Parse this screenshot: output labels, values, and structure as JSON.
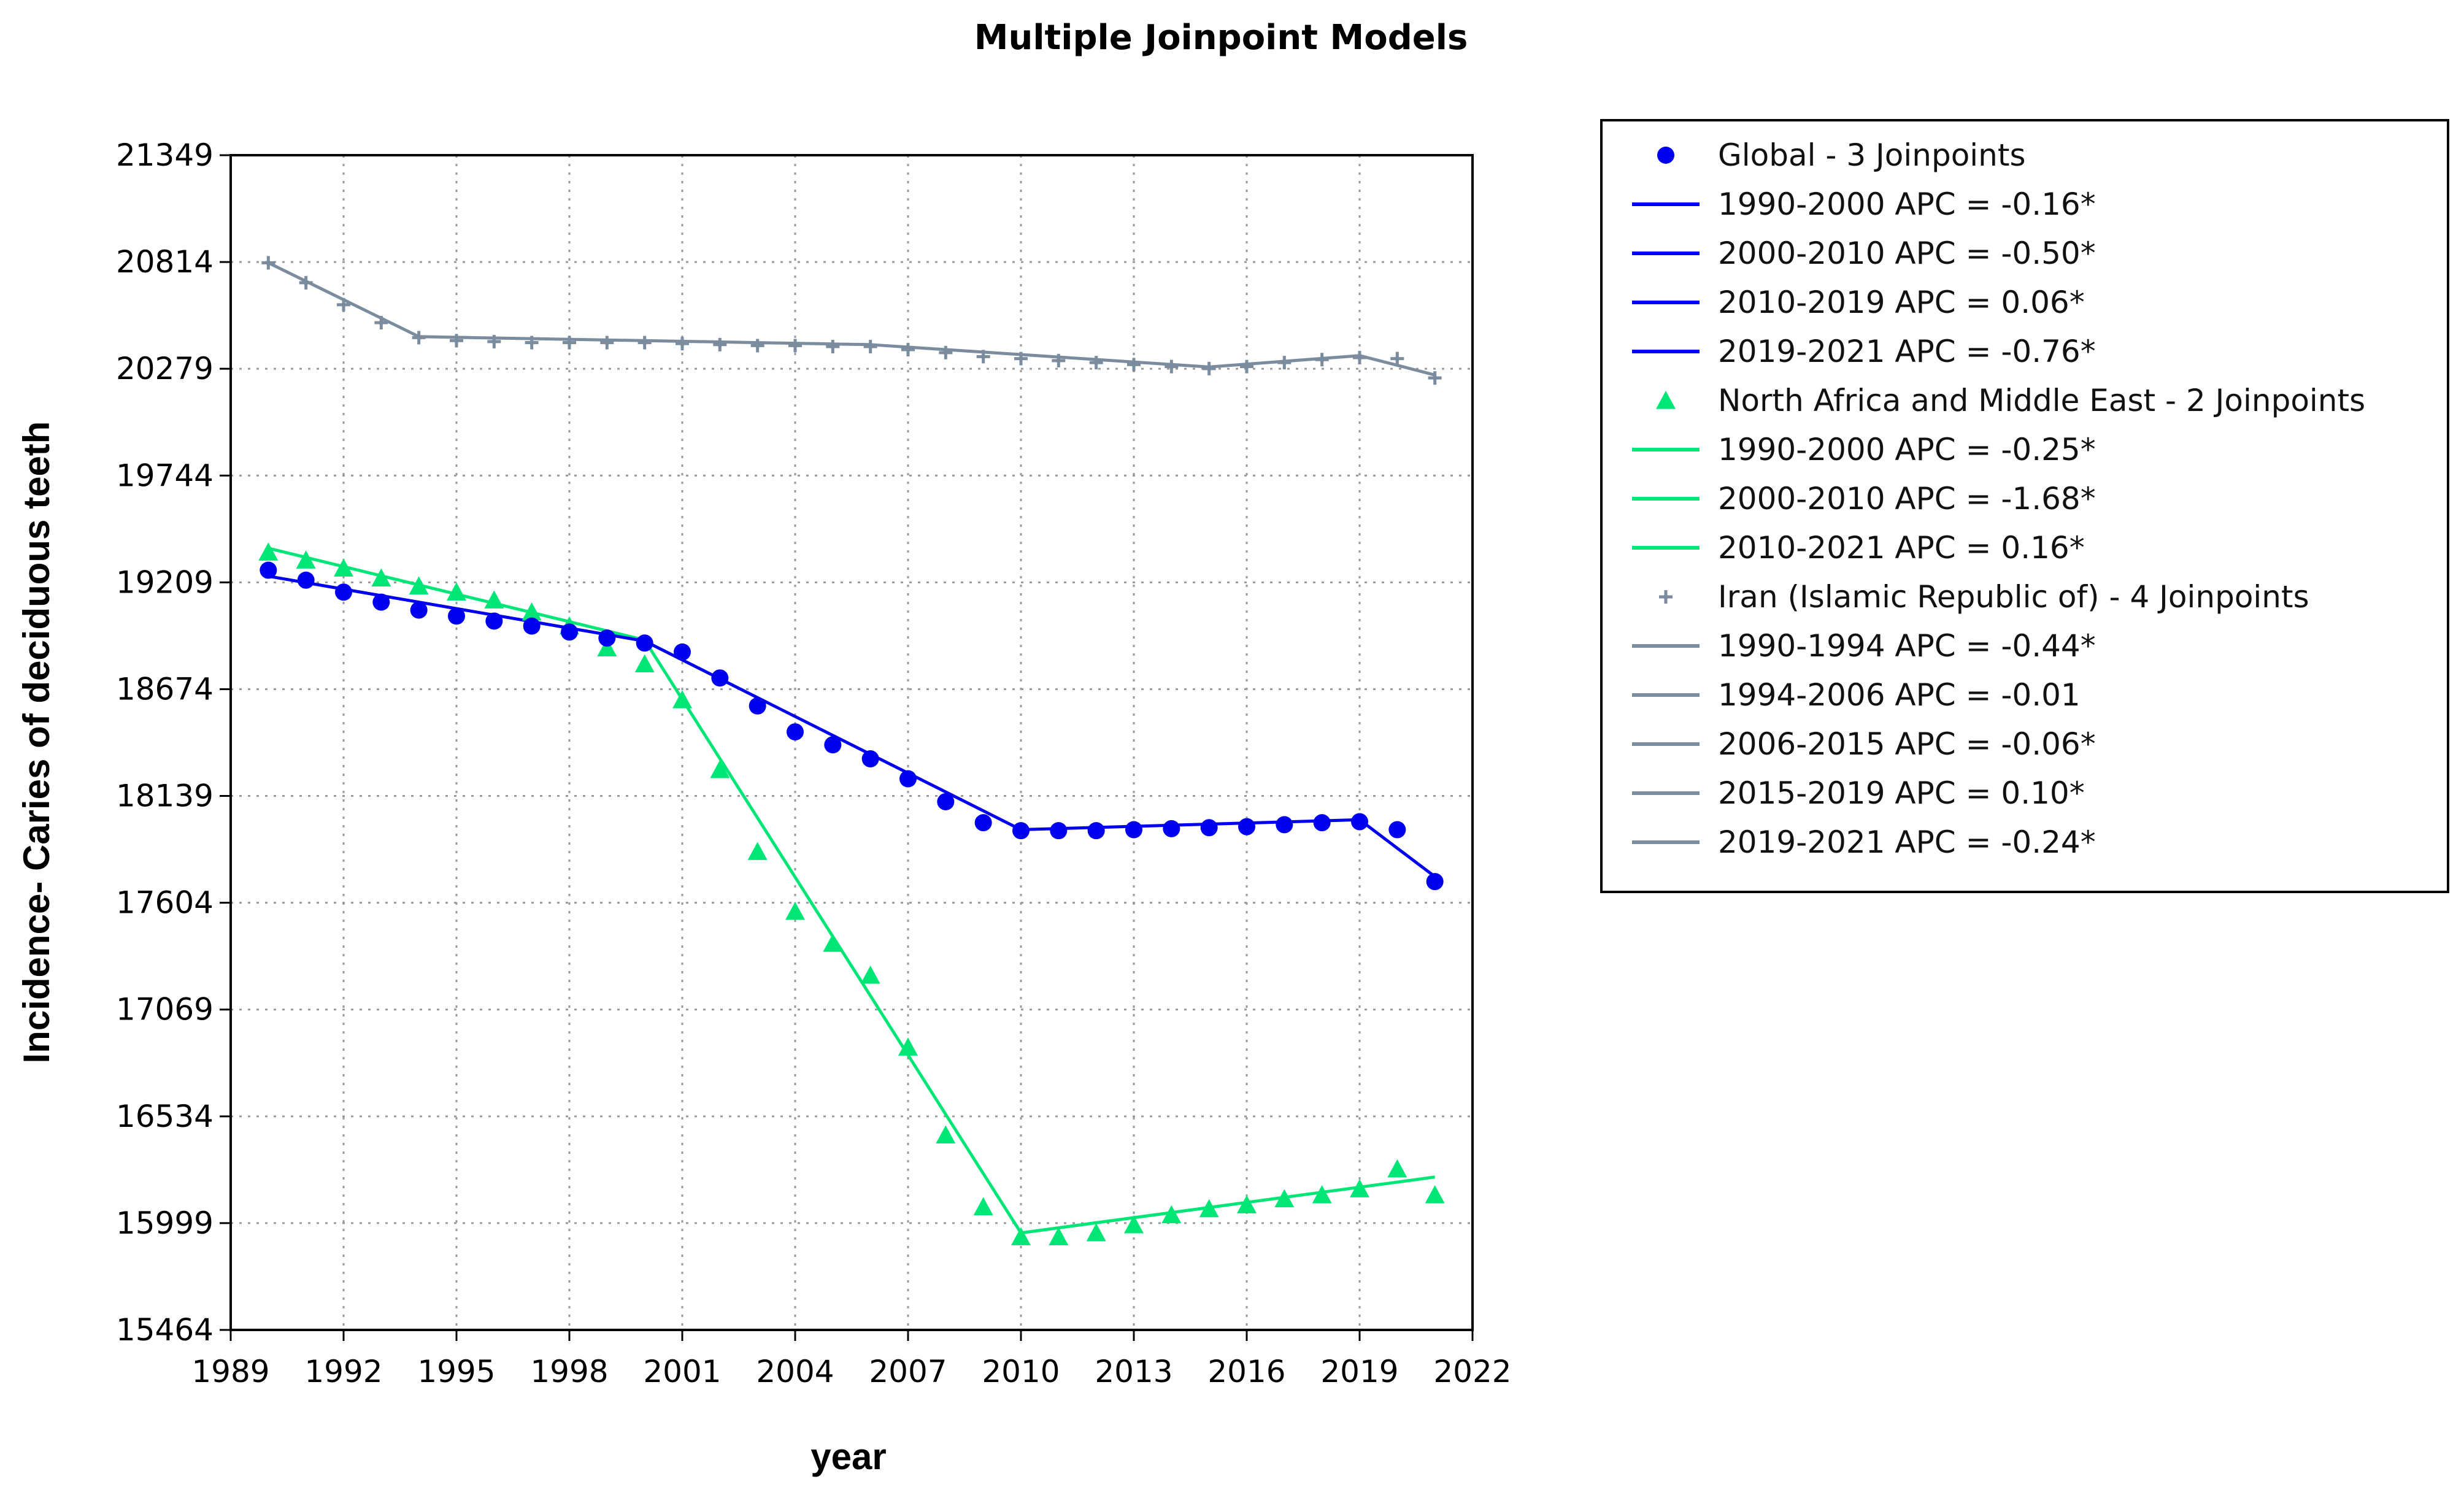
{
  "chart_data": {
    "type": "scatter",
    "title": "Multiple Joinpoint Models",
    "xlabel": "year",
    "ylabel": "Incidence- Caries of deciduous teeth",
    "xlim": [
      1989,
      2022
    ],
    "ylim": [
      15464,
      21349
    ],
    "x_ticks": [
      "1989",
      "1992",
      "1995",
      "1998",
      "2001",
      "2004",
      "2007",
      "2010",
      "2013",
      "2016",
      "2019",
      "2022"
    ],
    "y_ticks": [
      "21349",
      "20814",
      "20279",
      "19744",
      "19209",
      "18674",
      "18139",
      "17604",
      "17069",
      "16534",
      "15999",
      "15464"
    ],
    "grid": true,
    "legend_position": "right",
    "series": [
      {
        "name": "Global - 3 Joinpoints",
        "color": "#0000ee",
        "marker": "circle",
        "x": [
          1990,
          1991,
          1992,
          1993,
          1994,
          1995,
          1996,
          1997,
          1998,
          1999,
          2000,
          2001,
          2002,
          2003,
          2004,
          2005,
          2006,
          2007,
          2008,
          2009,
          2010,
          2011,
          2012,
          2013,
          2014,
          2015,
          2016,
          2017,
          2018,
          2019,
          2020,
          2021
        ],
        "y": [
          19270,
          19220,
          19160,
          19110,
          19070,
          19040,
          19015,
          18990,
          18960,
          18930,
          18905,
          18860,
          18730,
          18590,
          18460,
          18395,
          18325,
          18225,
          18110,
          18005,
          17965,
          17965,
          17965,
          17970,
          17975,
          17980,
          17985,
          17995,
          18005,
          18010,
          17970,
          17710
        ],
        "fit": [
          {
            "range": [
              1990,
              2000
            ],
            "start": 19240,
            "end": 18915
          },
          {
            "range": [
              2000,
              2010
            ],
            "start": 18915,
            "end": 17970
          },
          {
            "range": [
              2010,
              2019
            ],
            "start": 17970,
            "end": 18020
          },
          {
            "range": [
              2019,
              2021
            ],
            "start": 18020,
            "end": 17735
          }
        ],
        "legend_entries": [
          "1990-2000 APC  =  -0.16*",
          "2000-2010 APC  =  -0.50*",
          "2010-2019 APC  =  0.06*",
          "2019-2021 APC  =  -0.76*"
        ]
      },
      {
        "name": "North Africa and Middle East - 2 Joinpoints",
        "color": "#00e676",
        "marker": "triangle",
        "x": [
          1990,
          1991,
          1992,
          1993,
          1994,
          1995,
          1996,
          1997,
          1998,
          1999,
          2000,
          2001,
          2002,
          2003,
          2004,
          2005,
          2006,
          2007,
          2008,
          2009,
          2010,
          2011,
          2012,
          2013,
          2014,
          2015,
          2016,
          2017,
          2018,
          2019,
          2020,
          2021
        ],
        "y": [
          19360,
          19320,
          19280,
          19230,
          19190,
          19160,
          19120,
          19060,
          18990,
          18880,
          18800,
          18620,
          18270,
          17860,
          17560,
          17400,
          17240,
          16880,
          16440,
          16080,
          15930,
          15930,
          15950,
          15990,
          16040,
          16070,
          16090,
          16120,
          16140,
          16170,
          16270,
          16140
        ],
        "fit": [
          {
            "range": [
              1990,
              2000
            ],
            "start": 19380,
            "end": 18920
          },
          {
            "range": [
              2000,
              2010
            ],
            "start": 18920,
            "end": 15950
          },
          {
            "range": [
              2010,
              2021
            ],
            "start": 15950,
            "end": 16230
          }
        ],
        "legend_entries": [
          "1990-2000 APC  =  -0.25*",
          "2000-2010 APC  =  -1.68*",
          "2010-2021 APC  =  0.16*"
        ]
      },
      {
        "name": "Iran (Islamic Republic of) - 4 Joinpoints",
        "color": "#7b8c9e",
        "marker": "cross",
        "x": [
          1990,
          1991,
          1992,
          1993,
          1994,
          1995,
          1996,
          1997,
          1998,
          1999,
          2000,
          2001,
          2002,
          2003,
          2004,
          2005,
          2006,
          2007,
          2008,
          2009,
          2010,
          2011,
          2012,
          2013,
          2014,
          2015,
          2016,
          2017,
          2018,
          2019,
          2020,
          2021
        ],
        "y": [
          20810,
          20710,
          20600,
          20510,
          20435,
          20420,
          20415,
          20410,
          20410,
          20410,
          20410,
          20405,
          20400,
          20395,
          20395,
          20390,
          20390,
          20375,
          20360,
          20340,
          20330,
          20320,
          20310,
          20300,
          20290,
          20280,
          20290,
          20310,
          20325,
          20335,
          20330,
          20233
        ],
        "fit": [
          {
            "range": [
              1990,
              1994
            ],
            "start": 20810,
            "end": 20440
          },
          {
            "range": [
              1994,
              2006
            ],
            "start": 20440,
            "end": 20400
          },
          {
            "range": [
              2006,
              2015
            ],
            "start": 20400,
            "end": 20288
          },
          {
            "range": [
              2015,
              2019
            ],
            "start": 20288,
            "end": 20345
          },
          {
            "range": [
              2019,
              2021
            ],
            "start": 20345,
            "end": 20248
          }
        ],
        "legend_entries": [
          "1990-1994 APC  =  -0.44*",
          "1994-2006 APC  =  -0.01",
          "2006-2015 APC  =  -0.06*",
          "2015-2019 APC  =  0.10*",
          "2019-2021 APC  =  -0.24*"
        ]
      }
    ]
  }
}
